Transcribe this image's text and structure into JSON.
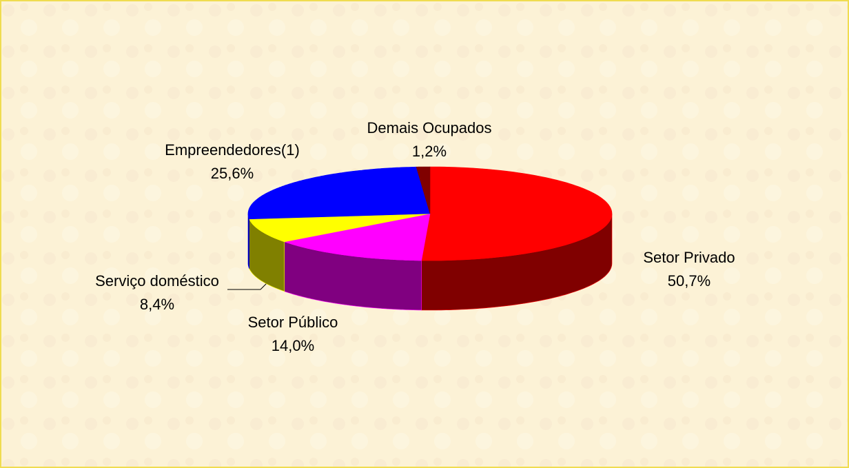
{
  "chart_data": {
    "type": "pie",
    "categories": [
      "Setor Privado",
      "Setor Público",
      "Serviço doméstico",
      "Empreendedores(1)",
      "Demais Ocupados"
    ],
    "values": [
      50.7,
      14.0,
      8.4,
      25.6,
      1.2
    ],
    "value_labels": [
      "50,7%",
      "14,0%",
      "8,4%",
      "25,6%",
      "1,2%"
    ],
    "colors": [
      "#ff0000",
      "#ff00ff",
      "#ffff00",
      "#0000ff",
      "#800000"
    ]
  }
}
